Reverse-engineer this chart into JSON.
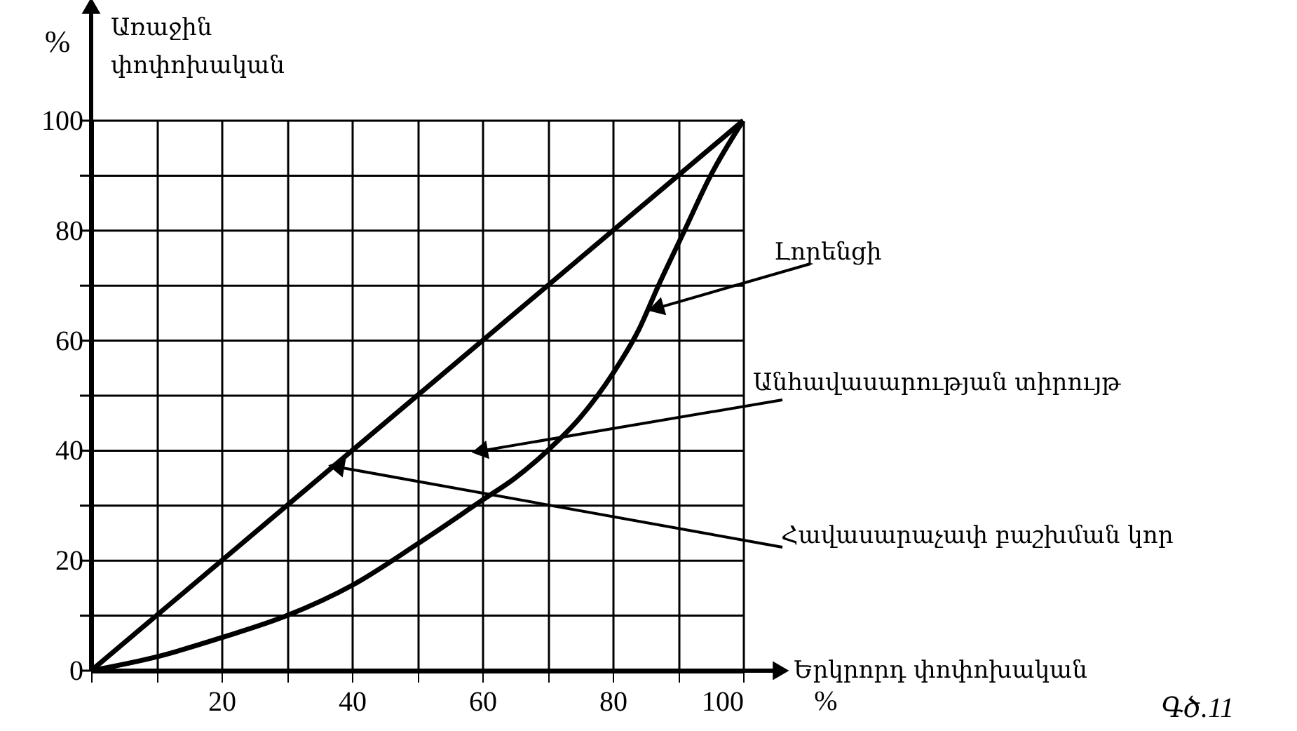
{
  "chart_data": {
    "type": "line",
    "ylabel": "Առաջին\nփոփոխական",
    "xlabel": "Երկրորդ    փոփոխական",
    "xlim": [
      0,
      100
    ],
    "ylim": [
      0,
      100
    ],
    "xticks": [
      {
        "value": 0,
        "label": null
      },
      {
        "value": 10,
        "label": null
      },
      20,
      {
        "value": 30,
        "label": null
      },
      40,
      {
        "value": 50,
        "label": null
      },
      60,
      {
        "value": 70,
        "label": null
      },
      80,
      {
        "value": 90,
        "label": null
      },
      100
    ],
    "yticks": [
      0,
      {
        "value": 10,
        "label": null
      },
      20,
      {
        "value": 30,
        "label": null
      },
      40,
      {
        "value": 50,
        "label": null
      },
      60,
      {
        "value": 70,
        "label": null
      },
      80,
      {
        "value": 90,
        "label": null
      },
      100
    ],
    "grid": true,
    "line_style": "solid",
    "series": [
      {
        "color": "#000000",
        "x": [
          0,
          100
        ],
        "values": [
          0,
          100
        ]
      },
      {
        "color": "#000000",
        "x": [
          0,
          10,
          20,
          30,
          40,
          50,
          60,
          65,
          70,
          75,
          80,
          84,
          87,
          91,
          95,
          100
        ],
        "values": [
          0,
          2.5,
          6,
          10,
          15.5,
          23,
          31,
          35,
          40,
          46,
          54,
          62,
          70,
          80,
          90,
          100
        ]
      }
    ],
    "annotations": [
      {
        "text": "Լորենցի",
        "x": 87,
        "y": 66
      },
      {
        "text": "Անհավասարության տիրույթ",
        "x": 60,
        "y": 40
      },
      {
        "text": "Հավասարաչափ բաշխման կոր",
        "x": 38,
        "y": 37
      },
      "%",
      "%",
      "Գծ.11"
    ]
  }
}
